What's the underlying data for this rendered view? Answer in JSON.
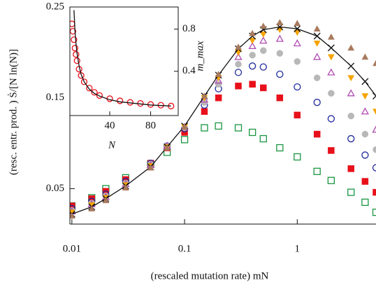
{
  "chart_data": [
    {
      "type": "scatter",
      "xlabel": "(rescaled mutation rate) mN",
      "ylabel": "(resc. entr. prod. ) Ṡ/[N ln(N)]",
      "xscale": "log",
      "xlim": [
        0.0096,
        5.0
      ],
      "xticks": [
        0.01,
        0.1,
        1
      ],
      "ylim": [
        0.011,
        0.25
      ],
      "yticks": [
        0.05,
        0.15,
        0.25
      ],
      "x": [
        0.01,
        0.015,
        0.02,
        0.03,
        0.05,
        0.07,
        0.1,
        0.15,
        0.2,
        0.3,
        0.4,
        0.5,
        0.7,
        1,
        1.5,
        2,
        3,
        4,
        5
      ],
      "series": [
        {
          "color": "#1a9641",
          "marker": "square-open",
          "values": [
            0.031,
            0.04,
            0.05,
            0.062,
            0.077,
            0.09,
            0.104,
            0.117,
            0.119,
            0.117,
            0.112,
            0.105,
            0.095,
            0.085,
            0.069,
            0.059,
            0.046,
            0.035,
            0.024
          ]
        },
        {
          "color": "#e8101a",
          "marker": "square",
          "values": [
            0.031,
            0.039,
            0.047,
            0.06,
            0.078,
            0.095,
            0.112,
            0.135,
            0.15,
            0.163,
            0.165,
            0.161,
            0.15,
            0.131,
            0.11,
            0.092,
            0.072,
            0.058,
            0.046
          ]
        },
        {
          "color": "#1f2a9c",
          "marker": "circle-open",
          "values": [
            0.028,
            0.036,
            0.044,
            0.058,
            0.078,
            0.097,
            0.116,
            0.142,
            0.16,
            0.178,
            0.185,
            0.184,
            0.176,
            0.162,
            0.145,
            0.127,
            0.105,
            0.087,
            0.073
          ]
        },
        {
          "color": "#b8b8b8",
          "marker": "circle",
          "values": [
            0.026,
            0.034,
            0.042,
            0.056,
            0.077,
            0.097,
            0.117,
            0.145,
            0.165,
            0.187,
            0.197,
            0.202,
            0.199,
            0.19,
            0.172,
            0.155,
            0.13,
            0.11,
            0.093
          ]
        },
        {
          "color": "#b04bb0",
          "marker": "triangle-open",
          "values": [
            0.025,
            0.033,
            0.041,
            0.055,
            0.076,
            0.097,
            0.118,
            0.148,
            0.169,
            0.195,
            0.207,
            0.213,
            0.215,
            0.21,
            0.195,
            0.178,
            0.155,
            0.135,
            0.115
          ]
        },
        {
          "color": "#f5a300",
          "marker": "triangle-down",
          "values": [
            0.024,
            0.032,
            0.04,
            0.054,
            0.075,
            0.096,
            0.118,
            0.15,
            0.172,
            0.2,
            0.213,
            0.22,
            0.225,
            0.222,
            0.21,
            0.195,
            0.172,
            0.152,
            0.135
          ]
        },
        {
          "color": "#111111",
          "marker": "cross",
          "line": true,
          "values": [
            0.022,
            0.03,
            0.039,
            0.053,
            0.074,
            0.096,
            0.119,
            0.152,
            0.175,
            0.204,
            0.218,
            0.225,
            0.228,
            0.226,
            0.218,
            0.205,
            0.185,
            0.168,
            0.152
          ]
        },
        {
          "color": "#a97a5e",
          "marker": "triangle",
          "values": [
            0.02,
            0.028,
            0.037,
            0.051,
            0.073,
            0.095,
            0.118,
            0.152,
            0.176,
            0.206,
            0.221,
            0.229,
            0.233,
            0.232,
            0.226,
            0.217,
            0.205,
            0.195,
            0.188
          ]
        }
      ]
    },
    {
      "type": "inset",
      "xlabel": "N",
      "ylabel": "m_max",
      "y_axis_side": "right",
      "xlim": [
        1,
        107
      ],
      "xticks": [
        40,
        80
      ],
      "ylim": [
        -0.02,
        1.01
      ],
      "yticks": [
        0.4,
        0.8
      ],
      "x": [
        3,
        4,
        5,
        6,
        7,
        8,
        10,
        12,
        15,
        20,
        25,
        30,
        40,
        50,
        60,
        70,
        80,
        90,
        100
      ],
      "series": [
        {
          "color": "#e8101a",
          "marker": "circle-open",
          "values": [
            0.85,
            0.78,
            0.7,
            0.62,
            0.56,
            0.5,
            0.42,
            0.36,
            0.3,
            0.24,
            0.2,
            0.17,
            0.14,
            0.12,
            0.105,
            0.095,
            0.085,
            0.078,
            0.07
          ]
        },
        {
          "color": "#111111",
          "line": true,
          "values": [
            null,
            null,
            0.98,
            0.78,
            0.66,
            0.57,
            0.45,
            0.37,
            0.3,
            0.23,
            0.19,
            0.165,
            0.13,
            0.11,
            0.1,
            0.09,
            0.08,
            0.075,
            0.07
          ]
        }
      ]
    }
  ]
}
